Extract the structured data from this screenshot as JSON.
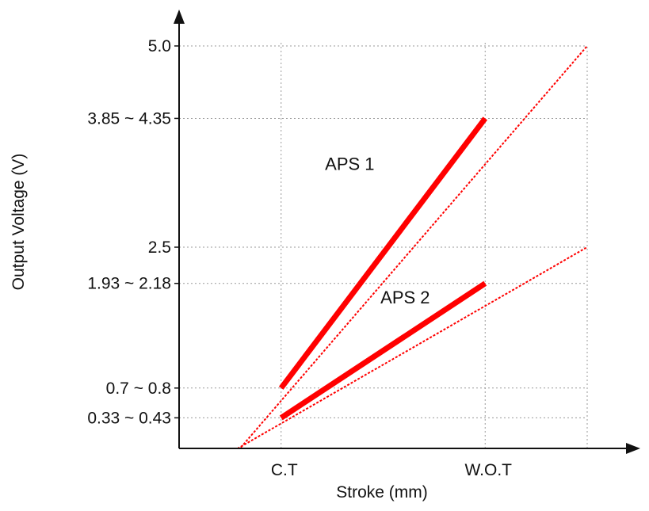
{
  "chart_data": {
    "type": "line",
    "xlabel": "Stroke (mm)",
    "ylabel": "Output Voltage (V)",
    "grid": true,
    "x_ticks": [
      {
        "label": "C.T",
        "x": 1
      },
      {
        "label": "W.O.T",
        "x": 3
      }
    ],
    "y_ticks": [
      {
        "label": "0.33 ~ 0.43",
        "y": 0.38
      },
      {
        "label": "0.7 ~ 0.8",
        "y": 0.75
      },
      {
        "label": "1.93 ~ 2.18",
        "y": 2.05
      },
      {
        "label": "2.5",
        "y": 2.5
      },
      {
        "label": "3.85 ~ 4.35",
        "y": 4.1
      },
      {
        "label": "5.0",
        "y": 5.0
      }
    ],
    "xlim": [
      0,
      4
    ],
    "ylim": [
      0,
      5.0
    ],
    "series": [
      {
        "name": "APS 1",
        "color": "#ff0000",
        "operating": [
          [
            1,
            0.75
          ],
          [
            3,
            4.1
          ]
        ],
        "extension": [
          [
            0.25,
            -0.51
          ],
          [
            4,
            5.0
          ]
        ]
      },
      {
        "name": "APS 2",
        "color": "#ff0000",
        "operating": [
          [
            1,
            0.38
          ],
          [
            3,
            2.05
          ]
        ],
        "extension": [
          [
            0.37,
            -0.15
          ],
          [
            4,
            2.5
          ]
        ]
      }
    ]
  }
}
